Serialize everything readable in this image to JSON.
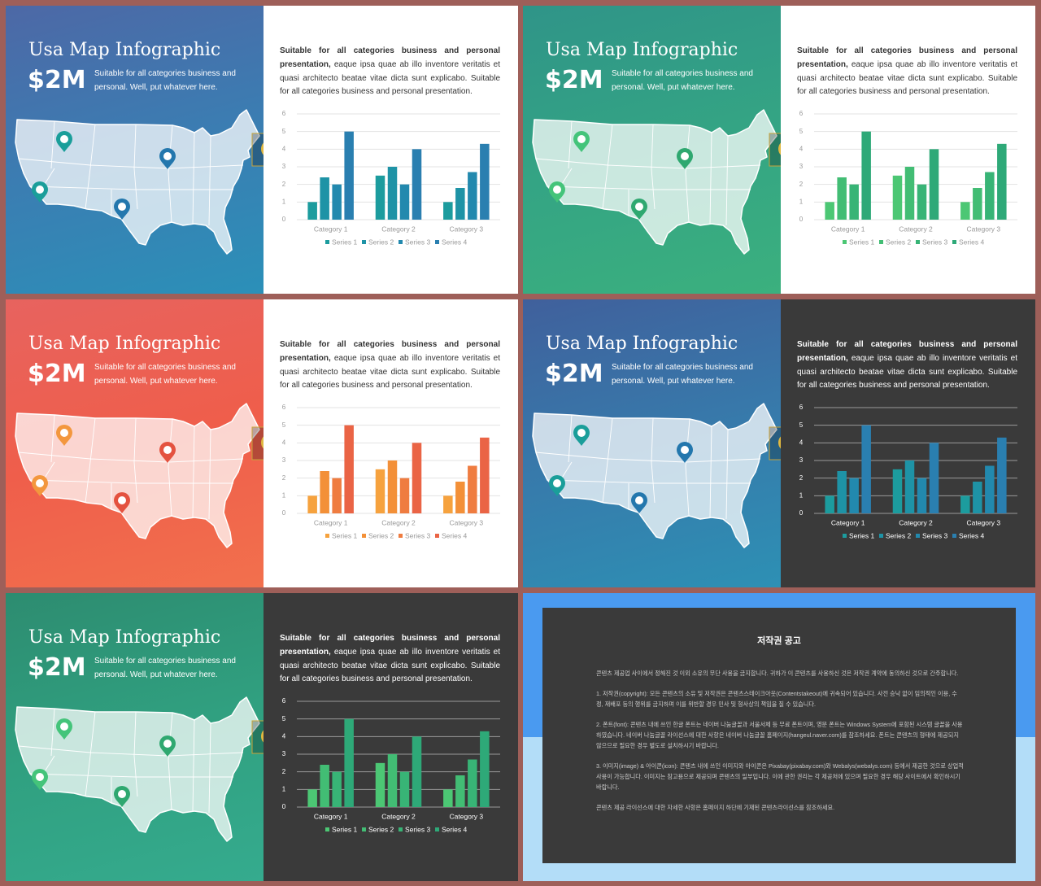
{
  "slide": {
    "title": "Usa Map Infographic",
    "amount": "$2M",
    "subtitle": "Suitable for all categories business and personal. Well, put whatever here.",
    "body_bold": "Suitable for all categories business and personal presentation,",
    "body": "eaque ipsa quae ab illo inventore veritatis et quasi architecto beatae vitae dicta sunt explicabo. Suitable for all categories business and personal presentation."
  },
  "chart_data": [
    {
      "type": "bar",
      "categories": [
        "Category 1",
        "Category 2",
        "Category 3"
      ],
      "ylim": [
        0,
        6
      ],
      "yticks": [
        0,
        1,
        2,
        3,
        4,
        5,
        6
      ],
      "grid": true,
      "series": [
        {
          "name": "Series 1",
          "color": "#1c9c9e",
          "values": [
            1,
            2.5,
            1
          ]
        },
        {
          "name": "Series 2",
          "color": "#1e93a6",
          "values": [
            2.4,
            3,
            1.8
          ]
        },
        {
          "name": "Series 3",
          "color": "#2289ae",
          "values": [
            2,
            2,
            2.7
          ]
        },
        {
          "name": "Series 4",
          "color": "#2a7fb0",
          "values": [
            5,
            4,
            4.3
          ]
        }
      ]
    },
    {
      "type": "bar",
      "categories": [
        "Category 1",
        "Category 2",
        "Category 3"
      ],
      "ylim": [
        0,
        6
      ],
      "yticks": [
        0,
        1,
        2,
        3,
        4,
        5,
        6
      ],
      "grid": true,
      "series": [
        {
          "name": "Series 1",
          "color": "#4cc774",
          "values": [
            1,
            2.5,
            1
          ]
        },
        {
          "name": "Series 2",
          "color": "#42bd74",
          "values": [
            2.4,
            3,
            1.8
          ]
        },
        {
          "name": "Series 3",
          "color": "#38b476",
          "values": [
            2,
            2,
            2.7
          ]
        },
        {
          "name": "Series 4",
          "color": "#2ea978",
          "values": [
            5,
            4,
            4.3
          ]
        }
      ]
    },
    {
      "type": "bar",
      "categories": [
        "Category 1",
        "Category 2",
        "Category 3"
      ],
      "ylim": [
        0,
        6
      ],
      "yticks": [
        0,
        1,
        2,
        3,
        4,
        5,
        6
      ],
      "grid": true,
      "series": [
        {
          "name": "Series 1",
          "color": "#f6a23e",
          "values": [
            1,
            2.5,
            1
          ]
        },
        {
          "name": "Series 2",
          "color": "#f39038",
          "values": [
            2.4,
            3,
            1.8
          ]
        },
        {
          "name": "Series 3",
          "color": "#ef7c40",
          "values": [
            2,
            2,
            2.7
          ]
        },
        {
          "name": "Series 4",
          "color": "#ea6445",
          "values": [
            5,
            4,
            4.3
          ]
        }
      ]
    },
    {
      "type": "bar",
      "categories": [
        "Category 1",
        "Category 2",
        "Category 3"
      ],
      "ylim": [
        0,
        6
      ],
      "yticks": [
        0,
        1,
        2,
        3,
        4,
        5,
        6
      ],
      "grid": true,
      "series": [
        {
          "name": "Series 1",
          "color": "#1c9c9e",
          "values": [
            1,
            2.5,
            1
          ]
        },
        {
          "name": "Series 2",
          "color": "#1e93a6",
          "values": [
            2.4,
            3,
            1.8
          ]
        },
        {
          "name": "Series 3",
          "color": "#2289ae",
          "values": [
            2,
            2,
            2.7
          ]
        },
        {
          "name": "Series 4",
          "color": "#2a7fb0",
          "values": [
            5,
            4,
            4.3
          ]
        }
      ]
    },
    {
      "type": "bar",
      "categories": [
        "Category 1",
        "Category 2",
        "Category 3"
      ],
      "ylim": [
        0,
        6
      ],
      "yticks": [
        0,
        1,
        2,
        3,
        4,
        5,
        6
      ],
      "grid": true,
      "series": [
        {
          "name": "Series 1",
          "color": "#4cc774",
          "values": [
            1,
            2.5,
            1
          ]
        },
        {
          "name": "Series 2",
          "color": "#42bd74",
          "values": [
            2.4,
            3,
            1.8
          ]
        },
        {
          "name": "Series 3",
          "color": "#38b476",
          "values": [
            2,
            2,
            2.7
          ]
        },
        {
          "name": "Series 4",
          "color": "#2ea978",
          "values": [
            5,
            4,
            4.3
          ]
        }
      ]
    }
  ],
  "notice": {
    "title": "저작권 공고",
    "paragraphs": [
      "콘텐츠 제공업 사이에서 정해진 것 이외 소유의 무단 사용을 금지합니다. 귀하가 이 콘텐츠를 사용하신 것은 저작권 계약에 동의하신 것으로 간주합니다.",
      "1. 저작권(copyright): 모든 콘텐츠의 소유 및 저작권은 콘텐츠스테이크아웃(Contentstakeout)에 귀속되어 있습니다. 사전 승낙 없이 임의적인 이용, 수정, 재배포 등의 행위를 금지하며 이를 위반할 경우 민사 및 형사상의 책임을 질 수 있습니다.",
      "2. 폰트(font): 콘텐츠 내에 쓰인 한글 폰트는 네이버 나눔글꼴과 서울서체 등 무료 폰트이며, 영문 폰트는 Windows System에 포함된 시스템 글꼴을 사용하였습니다. 네이버 나눔글꼴 라이선스에 대한 사항은 네이버 나눔글꼴 홈페이지(hangeul.naver.com)를 참조하세요. 폰트는 콘텐츠의 형태에 제공되지 않으므로 필요한 경우 별도로 설치하시기 바랍니다.",
      "3. 이미지(image) & 아이콘(icon): 콘텐츠 내에 쓰인 이미지와 아이콘은 Pixabay(pixabay.com)와 Webalys(webalys.com) 등에서 제공한 것으로 상업적 사용이 가능합니다. 이미지는 참고용으로 제공되며 콘텐츠의 일부입니다. 이에 관한 권리는 각 제공처에 있으며 필요한 경우 해당 사이트에서 확인하시기 바랍니다.",
      "콘텐츠 제공 라이선스에 대한 자세한 사항은 홈페이지 하단에 기재된 콘텐츠라이선스를 참조하세요."
    ]
  }
}
